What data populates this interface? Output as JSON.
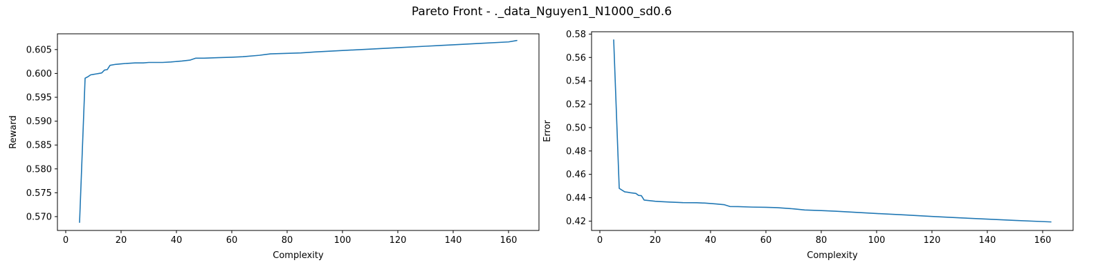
{
  "figure": {
    "title": "Pareto Front - ._data_Nguyen1_N1000_sd0.6",
    "line_color": "#1f77b4"
  },
  "chart_data": [
    {
      "type": "line",
      "title": "",
      "xlabel": "Complexity",
      "ylabel": "Reward",
      "xlim": [
        -3,
        171
      ],
      "ylim": [
        0.5671,
        0.6083
      ],
      "xticks": [
        0,
        20,
        40,
        60,
        80,
        100,
        120,
        140,
        160
      ],
      "yticks": [
        0.57,
        0.575,
        0.58,
        0.585,
        0.59,
        0.595,
        0.6,
        0.605
      ],
      "ytick_labels": [
        "0.570",
        "0.575",
        "0.580",
        "0.585",
        "0.590",
        "0.595",
        "0.600",
        "0.605"
      ],
      "grid": false,
      "series": [
        {
          "x": [
            5,
            7,
            8,
            9,
            10,
            11,
            12,
            13,
            14,
            15,
            16,
            18,
            20,
            22,
            25,
            28,
            30,
            35,
            38,
            42,
            45,
            47,
            50,
            55,
            60,
            64,
            70,
            74,
            80,
            85,
            90,
            100,
            110,
            120,
            130,
            140,
            150,
            160,
            163
          ],
          "y": [
            0.5688,
            0.599,
            0.5993,
            0.5997,
            0.5998,
            0.5999,
            0.6,
            0.6001,
            0.6007,
            0.6008,
            0.6017,
            0.6019,
            0.602,
            0.6021,
            0.6022,
            0.6022,
            0.6023,
            0.6023,
            0.6024,
            0.6026,
            0.6028,
            0.6032,
            0.6032,
            0.6033,
            0.6034,
            0.6035,
            0.6038,
            0.6041,
            0.6042,
            0.6043,
            0.6045,
            0.6048,
            0.6051,
            0.6054,
            0.6057,
            0.606,
            0.6063,
            0.6066,
            0.6069
          ]
        }
      ]
    },
    {
      "type": "line",
      "title": "",
      "xlabel": "Complexity",
      "ylabel": "Error",
      "xlim": [
        -3,
        171
      ],
      "ylim": [
        0.412,
        0.582
      ],
      "xticks": [
        0,
        20,
        40,
        60,
        80,
        100,
        120,
        140,
        160
      ],
      "yticks": [
        0.42,
        0.44,
        0.46,
        0.48,
        0.5,
        0.52,
        0.54,
        0.56,
        0.58
      ],
      "ytick_labels": [
        "0.42",
        "0.44",
        "0.46",
        "0.48",
        "0.50",
        "0.52",
        "0.54",
        "0.56",
        "0.58"
      ],
      "grid": false,
      "series": [
        {
          "x": [
            5,
            7,
            8,
            9,
            10,
            11,
            12,
            13,
            14,
            15,
            16,
            18,
            20,
            22,
            25,
            28,
            30,
            35,
            38,
            42,
            45,
            47,
            50,
            55,
            60,
            64,
            70,
            74,
            80,
            85,
            90,
            100,
            110,
            120,
            130,
            140,
            150,
            160,
            163
          ],
          "y": [
            0.575,
            0.448,
            0.4465,
            0.445,
            0.4447,
            0.4443,
            0.444,
            0.4437,
            0.442,
            0.4418,
            0.438,
            0.4375,
            0.437,
            0.4367,
            0.4363,
            0.436,
            0.4358,
            0.4357,
            0.4354,
            0.4347,
            0.434,
            0.4325,
            0.4324,
            0.432,
            0.4318,
            0.4315,
            0.4305,
            0.4295,
            0.429,
            0.4285,
            0.4278,
            0.4265,
            0.4253,
            0.424,
            0.4228,
            0.4217,
            0.4206,
            0.4196,
            0.4193
          ]
        }
      ]
    }
  ]
}
